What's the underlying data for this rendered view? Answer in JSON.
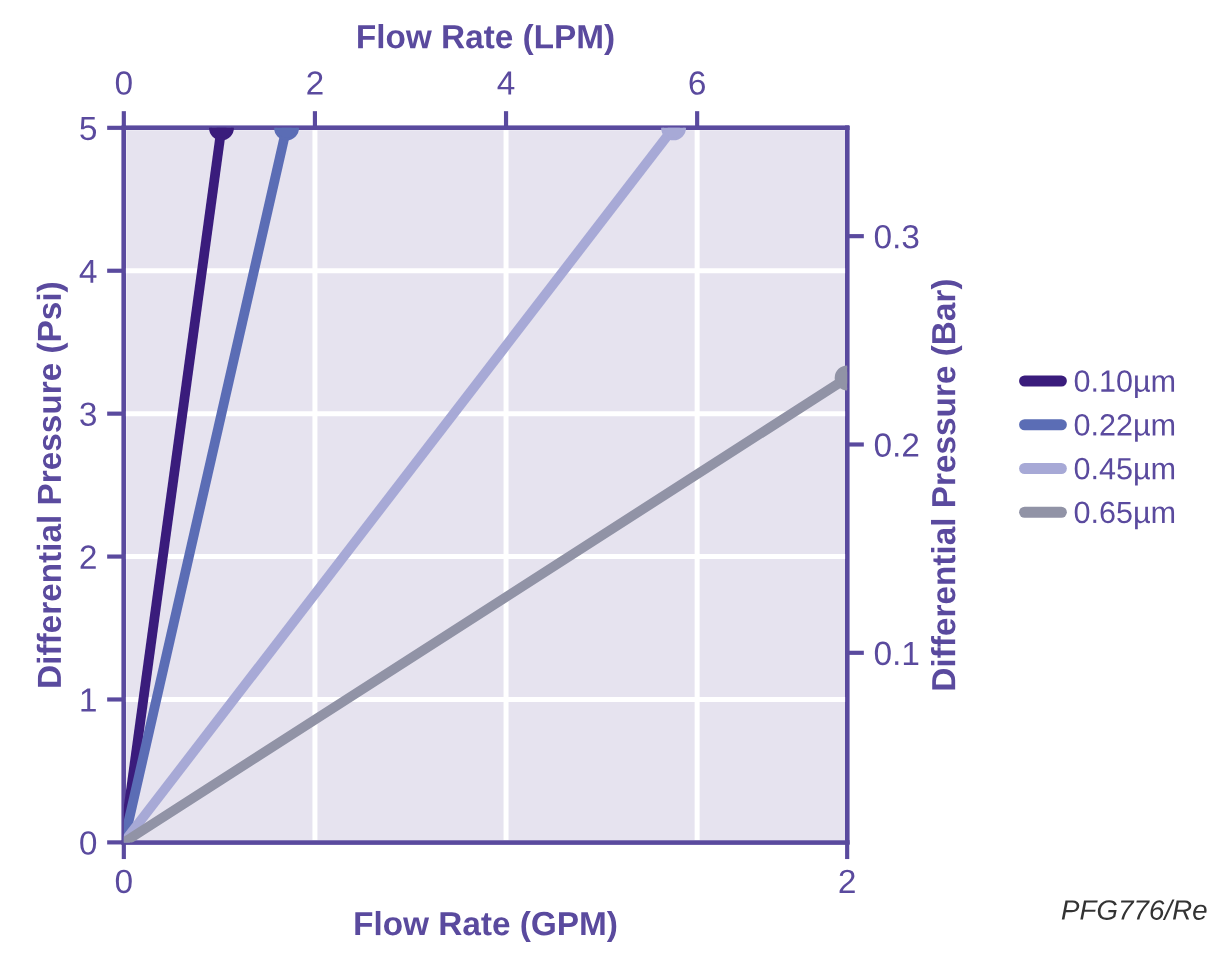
{
  "chart_data": {
    "type": "line",
    "xlabel": "Flow Rate (GPM)",
    "x2label": "Flow Rate (LPM)",
    "ylabel": "Differential Pressure (Psi)",
    "y2label": "Differential Pressure (Bar)",
    "xlim": [
      0,
      2
    ],
    "xticks": [
      0,
      2
    ],
    "x2lim": [
      0,
      7.57
    ],
    "x2ticks": [
      0,
      2,
      4,
      6
    ],
    "ylim": [
      0,
      5
    ],
    "yticks": [
      0,
      1,
      2,
      3,
      4,
      5
    ],
    "y2lim": [
      0.009,
      0.352
    ],
    "y2ticks": [
      0.1,
      0.2,
      0.3
    ],
    "grid": true,
    "legend": "right",
    "marker": "circle",
    "line_style": "solid",
    "series": [
      {
        "name": "0.10µm",
        "color": "#3a1c7c",
        "x": [
          0,
          0.27
        ],
        "values": [
          0,
          5
        ]
      },
      {
        "name": "0.22µm",
        "color": "#5b6db5",
        "x": [
          0,
          0.45
        ],
        "values": [
          0,
          5
        ]
      },
      {
        "name": "0.45µm",
        "color": "#a7a9d6",
        "x": [
          0,
          1.52
        ],
        "values": [
          0,
          5
        ]
      },
      {
        "name": "0.65µm",
        "color": "#9193a6",
        "x": [
          0,
          2
        ],
        "values": [
          0,
          3.25
        ]
      }
    ],
    "annotations": [
      "PFG776/Re"
    ]
  }
}
